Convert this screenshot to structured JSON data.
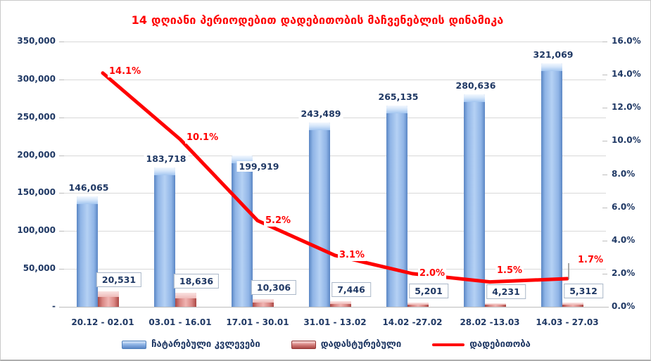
{
  "title": "14 დღიანი პერიოდებით დადებითობის მაჩვენებლის დინამიკა",
  "colors": {
    "title": "#ff0000",
    "axis_text": "#1f3864",
    "gridline": "#d9d9d9",
    "tests_bar": "#4f81bd",
    "confirmed_bar": "#c0504d",
    "positivity_line": "#ff0000"
  },
  "chart_data": {
    "type": "bar",
    "subtype": "combo-bar-line",
    "title": "14 დღიანი პერიოდებით დადებითობის მაჩვენებლის დინამიკა",
    "categories": [
      "20.12 - 02.01",
      "03.01 - 16.01",
      "17.01 - 30.01",
      "31.01 - 13.02",
      "14.02 -27.02",
      "28.02 -13.03",
      "14.03 - 27.03"
    ],
    "series": [
      {
        "name": "ჩატარებული კვლევები",
        "type": "bar",
        "axis": "left",
        "color": "#4f81bd",
        "values": [
          146065,
          183718,
          199919,
          243489,
          265135,
          280636,
          321069
        ],
        "labels": [
          "146,065",
          "183,718",
          "199,919",
          "243,489",
          "265,135",
          "280,636",
          "321,069"
        ]
      },
      {
        "name": "დადასტურებული",
        "type": "bar",
        "axis": "left",
        "color": "#c0504d",
        "values": [
          20531,
          18636,
          10306,
          7446,
          5201,
          4231,
          5312
        ],
        "labels": [
          "20,531",
          "18,636",
          "10,306",
          "7,446",
          "5,201",
          "4,231",
          "5,312"
        ]
      },
      {
        "name": "დადებითობა",
        "type": "line",
        "axis": "right",
        "color": "#ff0000",
        "values": [
          14.1,
          10.1,
          5.2,
          3.1,
          2.0,
          1.5,
          1.7
        ],
        "labels": [
          "14.1%",
          "10.1%",
          "5.2%",
          "3.1%",
          "2.0%",
          "1.5%",
          "1.7%"
        ]
      }
    ],
    "left_axis": {
      "min": 0,
      "max": 350000,
      "step": 50000,
      "tick_labels_top_to_bottom": [
        "350,000",
        "300,000",
        "250,000",
        "200,000",
        "150,000",
        "100,000",
        "50,000",
        "-"
      ]
    },
    "right_axis": {
      "min": 0,
      "max": 16,
      "step": 2,
      "tick_labels_top_to_bottom": [
        "16.0%",
        "14.0%",
        "12.0%",
        "10.0%",
        "8.0%",
        "6.0%",
        "4.0%",
        "2.0%",
        "0.0%"
      ]
    },
    "grid": true,
    "legend_position": "bottom"
  }
}
